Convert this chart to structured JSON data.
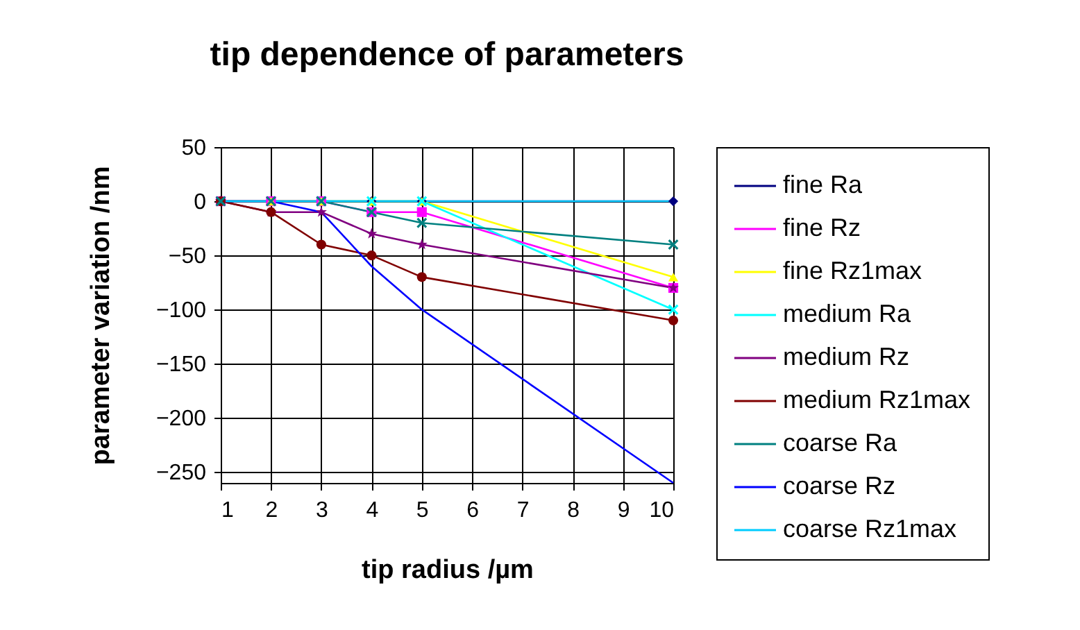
{
  "chart_data": {
    "type": "line",
    "title": "tip dependence of parameters",
    "xlabel": "tip radius /µm",
    "ylabel": "parameter variation /nm",
    "x": [
      1,
      2,
      3,
      4,
      5,
      10
    ],
    "xlim": [
      1,
      10
    ],
    "xticks": [
      1,
      2,
      3,
      4,
      5,
      6,
      7,
      8,
      9,
      10
    ],
    "ylim": [
      -260,
      50
    ],
    "yticks": [
      -250,
      -200,
      -150,
      -100,
      -50,
      0,
      50
    ],
    "grid": true,
    "legend": "right",
    "series": [
      {
        "name": "fine Ra",
        "color": "#000080",
        "marker": "diamond",
        "values": [
          0,
          0,
          0,
          0,
          0,
          0
        ]
      },
      {
        "name": "fine Rz",
        "color": "#ff00ff",
        "marker": "square",
        "values": [
          0,
          0,
          0,
          -10,
          -10,
          -80
        ]
      },
      {
        "name": "fine Rz1max",
        "color": "#ffff00",
        "marker": "triangle",
        "values": [
          0,
          0,
          0,
          0,
          0,
          -70
        ]
      },
      {
        "name": "medium Ra",
        "color": "#00ffff",
        "marker": "cross",
        "values": [
          null,
          null,
          0,
          0,
          0,
          -100
        ]
      },
      {
        "name": "medium Rz",
        "color": "#800080",
        "marker": "star",
        "values": [
          0,
          -10,
          -10,
          -30,
          -40,
          -80
        ]
      },
      {
        "name": "medium Rz1max",
        "color": "#800000",
        "marker": "circle",
        "values": [
          0,
          -10,
          -40,
          -50,
          -70,
          -110
        ]
      },
      {
        "name": "coarse Ra",
        "color": "#008080",
        "marker": "cross",
        "values": [
          0,
          0,
          0,
          -10,
          -20,
          -40
        ]
      },
      {
        "name": "coarse Rz",
        "color": "#0000ff",
        "marker": "none",
        "values": [
          0,
          0,
          -10,
          -60,
          -100,
          -260
        ]
      },
      {
        "name": "coarse Rz1max",
        "color": "#00ccff",
        "marker": "none",
        "values": [
          0,
          0,
          0,
          0,
          0,
          0
        ]
      }
    ]
  }
}
